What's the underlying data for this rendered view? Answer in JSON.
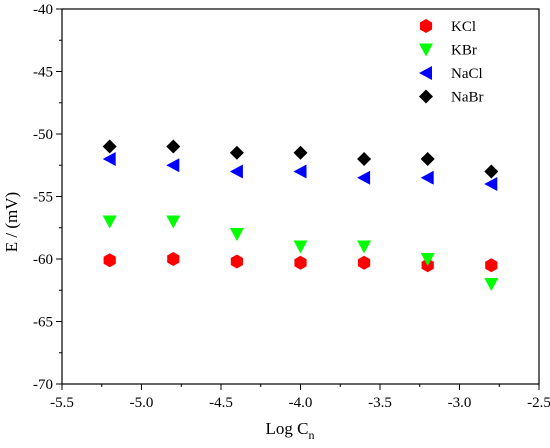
{
  "chart_data": {
    "type": "scatter",
    "title": "",
    "xlabel": "Log C",
    "xlabel_sub": "n",
    "ylabel": "E / (mV)",
    "xlim": [
      -5.5,
      -2.5
    ],
    "ylim": [
      -70,
      -40
    ],
    "x_ticks": [
      -5.5,
      -5.0,
      -4.5,
      -4.0,
      -3.5,
      -3.0,
      -2.5
    ],
    "x_tick_labels": [
      "-5.5",
      "-5.0",
      "-4.5",
      "-4.0",
      "-3.5",
      "-3.0",
      "-2.5"
    ],
    "y_ticks": [
      -70,
      -65,
      -60,
      -55,
      -50,
      -45,
      -40
    ],
    "y_tick_labels": [
      "-70",
      "-65",
      "-60",
      "-55",
      "-50",
      "-45",
      "-40"
    ],
    "grid": false,
    "legend_position": "top-right",
    "x": [
      -5.2,
      -4.8,
      -4.4,
      -4.0,
      -3.6,
      -3.2,
      -2.8
    ],
    "series": [
      {
        "name": "KCl",
        "marker": "hexagon",
        "color": "#ff0000",
        "values": [
          -60.1,
          -60.0,
          -60.2,
          -60.3,
          -60.3,
          -60.5,
          -60.5
        ]
      },
      {
        "name": "KBr",
        "marker": "triangle-down",
        "color": "#00ff00",
        "values": [
          -57.0,
          -57.0,
          -58.0,
          -59.0,
          -59.0,
          -60.0,
          -62.0
        ]
      },
      {
        "name": "NaCl",
        "marker": "triangle-left",
        "color": "#0000ff",
        "values": [
          -52.0,
          -52.5,
          -53.0,
          -53.0,
          -53.5,
          -53.5,
          -54.0
        ]
      },
      {
        "name": "NaBr",
        "marker": "diamond",
        "color": "#000000",
        "values": [
          -51.0,
          -51.0,
          -51.5,
          -51.5,
          -52.0,
          -52.0,
          -53.0
        ]
      }
    ]
  }
}
